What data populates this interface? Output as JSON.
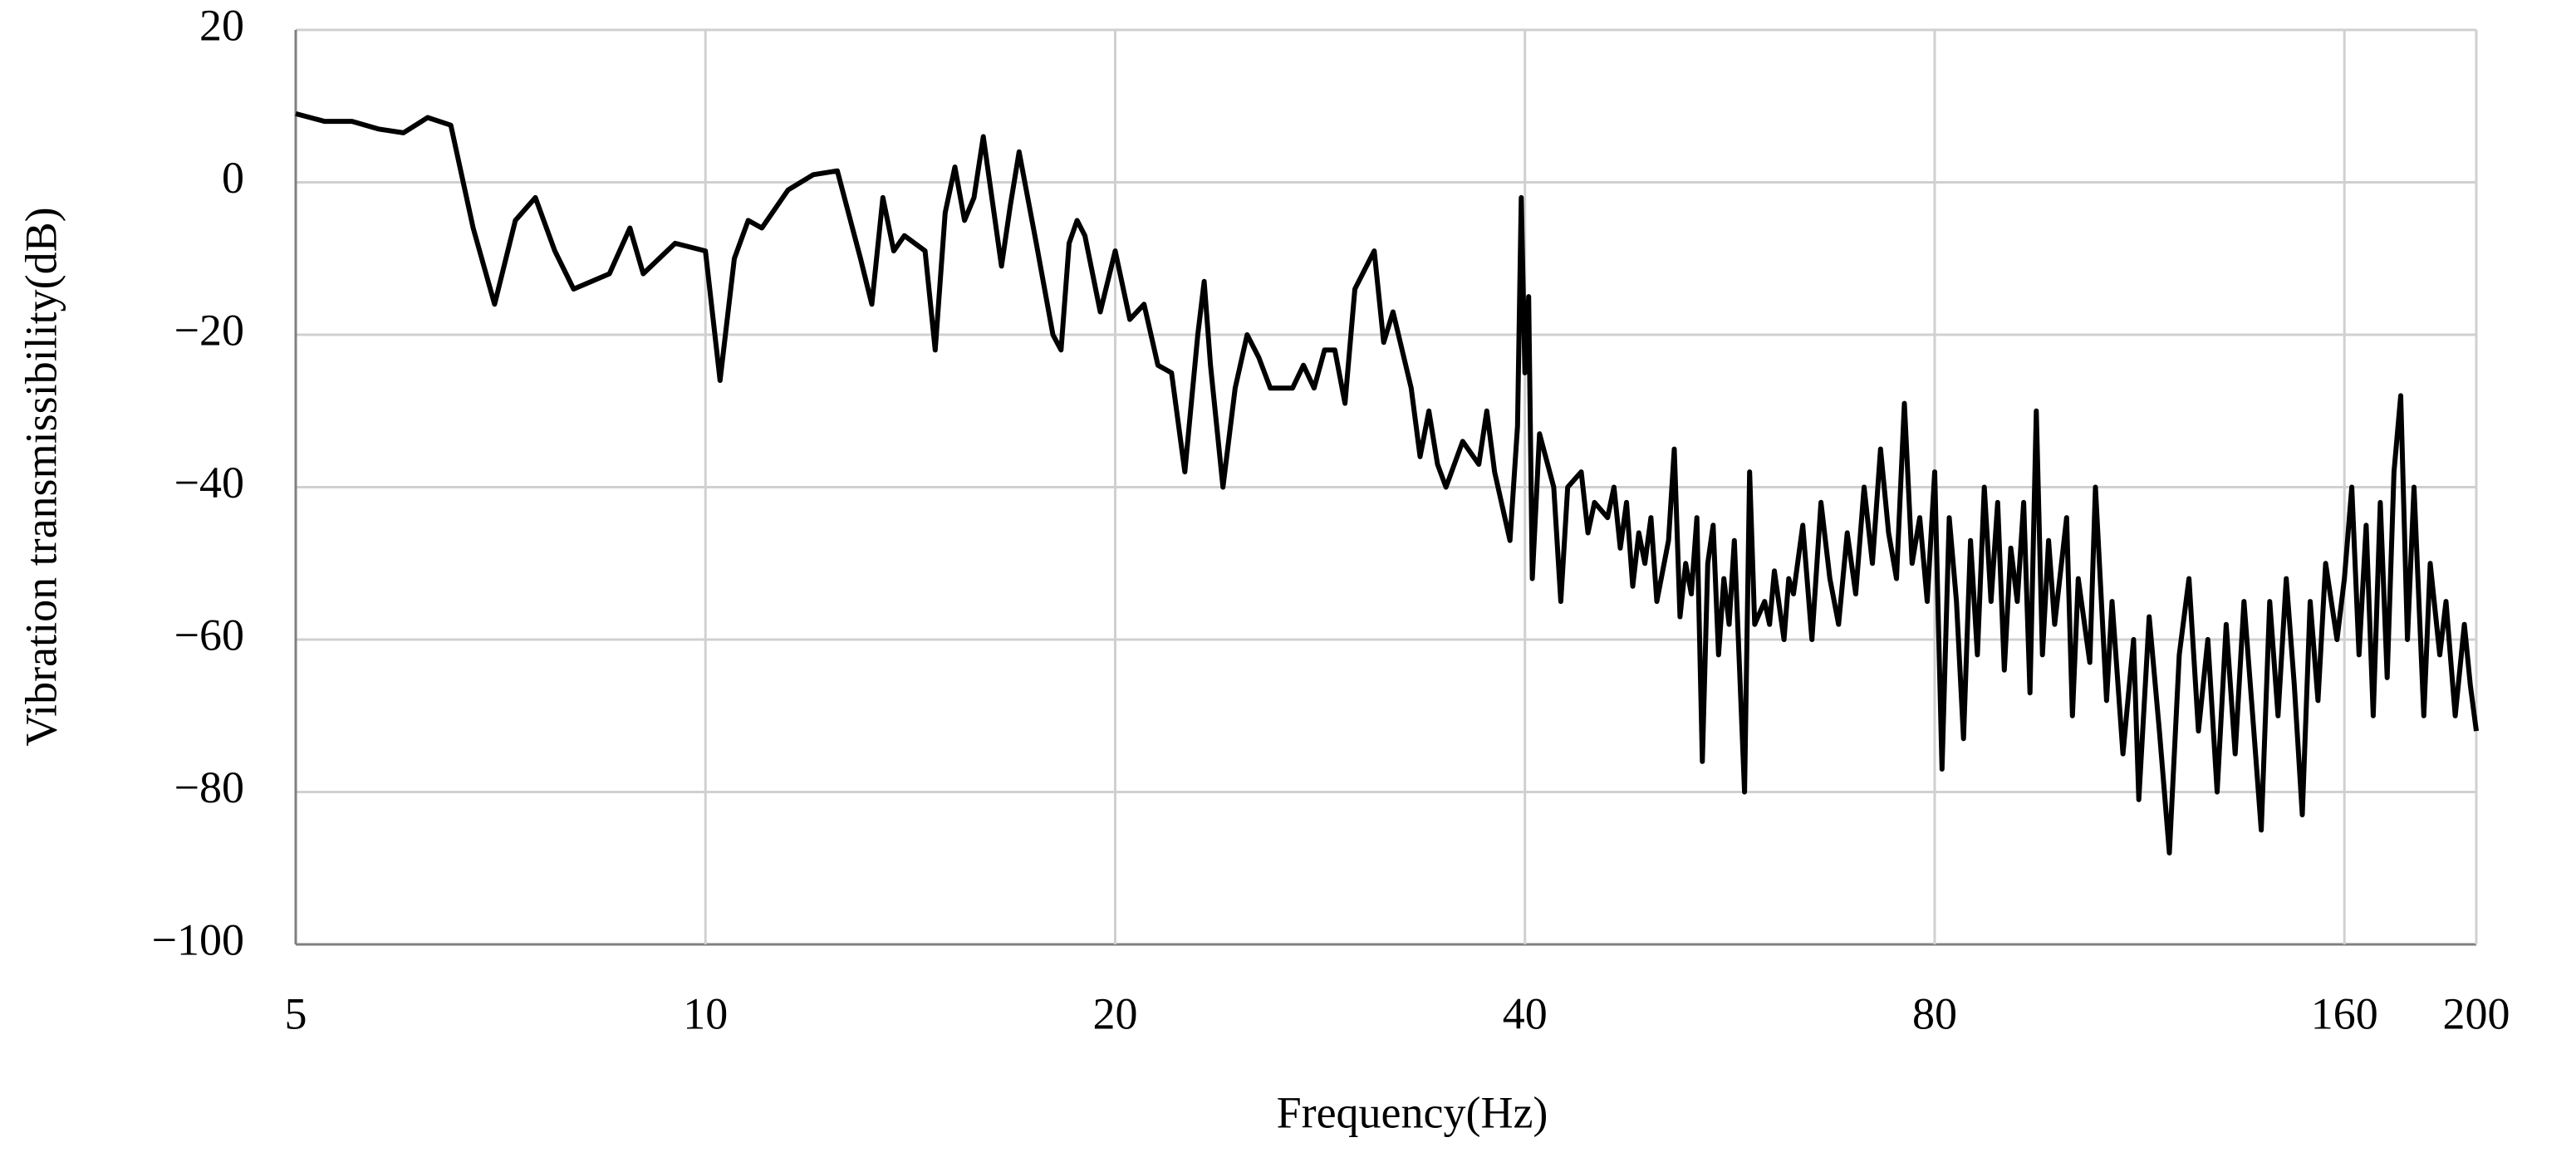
{
  "chart_data": {
    "type": "line",
    "xlabel": "Frequency(Hz)",
    "ylabel": "Vibration transmissibility(dB)",
    "xscale": "log",
    "grid": true,
    "color": "#000000",
    "xlim": [
      5,
      200
    ],
    "xticks": [
      5,
      10,
      20,
      40,
      80,
      160,
      200
    ],
    "ylim": [
      -100,
      20
    ],
    "yticks": [
      {
        "value": -100,
        "label": "−100"
      },
      {
        "value": -80,
        "label": "−80"
      },
      {
        "value": -60,
        "label": "−60"
      },
      {
        "value": -40,
        "label": "−40"
      },
      {
        "value": -20,
        "label": "−20"
      },
      0,
      20
    ],
    "x": [
      5,
      5.25,
      5.5,
      5.75,
      6,
      6.25,
      6.5,
      6.75,
      7,
      7.25,
      7.5,
      7.75,
      8,
      8.5,
      8.8,
      9,
      9.5,
      10,
      10.25,
      10.5,
      10.75,
      11,
      11.5,
      12,
      12.5,
      13,
      13.25,
      13.5,
      13.75,
      14,
      14.5,
      14.75,
      15,
      15.25,
      15.5,
      15.75,
      16,
      16.5,
      16.75,
      17,
      17.5,
      18,
      18.25,
      18.5,
      18.75,
      19,
      19.5,
      20,
      20.5,
      21,
      21.5,
      22,
      22.5,
      23,
      23.25,
      23.5,
      24,
      24.5,
      25,
      25.5,
      26,
      27,
      27.5,
      28,
      28.5,
      29,
      29.5,
      30,
      31,
      31.5,
      32,
      33,
      33.5,
      34,
      34.5,
      35,
      36,
      37,
      37.5,
      38,
      39,
      39.5,
      39.75,
      40,
      40.25,
      40.5,
      41,
      42,
      42.5,
      43,
      44,
      44.5,
      45,
      46,
      46.5,
      47,
      47.5,
      48,
      48.5,
      49,
      49.5,
      50,
      51,
      51.5,
      52,
      52.5,
      53,
      53.5,
      54,
      54.5,
      55,
      55.5,
      56,
      56.5,
      57,
      58,
      58.5,
      59,
      60,
      60.5,
      61,
      62,
      62.5,
      63,
      64,
      65,
      66,
      67,
      68,
      69,
      70,
      71,
      72,
      73,
      74,
      75,
      76,
      77,
      78,
      79,
      80,
      81,
      82,
      83,
      84,
      85,
      86,
      87,
      88,
      89,
      90,
      91,
      92,
      93,
      94,
      95,
      96,
      97,
      98,
      100,
      101,
      102,
      104,
      105,
      107,
      108,
      110,
      112,
      113,
      115,
      117,
      119,
      121,
      123,
      125,
      127,
      129,
      131,
      133,
      135,
      137,
      139,
      141,
      143,
      145,
      147,
      149,
      151,
      153,
      155,
      158,
      160,
      162,
      164,
      166,
      168,
      170,
      172,
      174,
      176,
      178,
      180,
      183,
      185,
      188,
      190,
      193,
      196,
      198,
      200
    ],
    "values": [
      9,
      8,
      8,
      7,
      6.5,
      8.5,
      7.5,
      -6,
      -16,
      -5,
      -2,
      -9,
      -14,
      -12,
      -6,
      -12,
      -8,
      -9,
      -26,
      -10,
      -5,
      -6,
      -1,
      1,
      1.5,
      -10,
      -16,
      -2,
      -9,
      -7,
      -9,
      -22,
      -4,
      2,
      -5,
      -2,
      6,
      -11,
      -3,
      4,
      -8,
      -20,
      -22,
      -8,
      -5,
      -7,
      -17,
      -9,
      -18,
      -16,
      -24,
      -25,
      -38,
      -20,
      -13,
      -24,
      -40,
      -27,
      -20,
      -23,
      -27,
      -27,
      -24,
      -27,
      -22,
      -22,
      -29,
      -14,
      -9,
      -21,
      -17,
      -27,
      -36,
      -30,
      -37,
      -40,
      -34,
      -37,
      -30,
      -38,
      -47,
      -32,
      -2,
      -25,
      -15,
      -52,
      -33,
      -40,
      -55,
      -40,
      -38,
      -46,
      -42,
      -44,
      -40,
      -48,
      -42,
      -53,
      -46,
      -50,
      -44,
      -55,
      -47,
      -35,
      -57,
      -50,
      -54,
      -44,
      -76,
      -50,
      -45,
      -62,
      -52,
      -58,
      -47,
      -80,
      -38,
      -58,
      -55,
      -58,
      -51,
      -60,
      -52,
      -54,
      -45,
      -60,
      -42,
      -52,
      -58,
      -46,
      -54,
      -40,
      -50,
      -35,
      -46,
      -52,
      -29,
      -50,
      -44,
      -55,
      -38,
      -77,
      -44,
      -55,
      -73,
      -47,
      -62,
      -40,
      -55,
      -42,
      -64,
      -48,
      -55,
      -42,
      -67,
      -30,
      -62,
      -47,
      -58,
      -44,
      -70,
      -52,
      -63,
      -40,
      -68,
      -55,
      -75,
      -60,
      -81,
      -57,
      -72,
      -88,
      -62,
      -52,
      -72,
      -60,
      -80,
      -58,
      -75,
      -55,
      -70,
      -85,
      -55,
      -70,
      -52,
      -66,
      -83,
      -55,
      -68,
      -50,
      -60,
      -52,
      -40,
      -62,
      -45,
      -70,
      -42,
      -65,
      -38,
      -28,
      -60,
      -40,
      -70,
      -50,
      -62,
      -55,
      -70,
      -58,
      -66,
      -72
    ]
  }
}
